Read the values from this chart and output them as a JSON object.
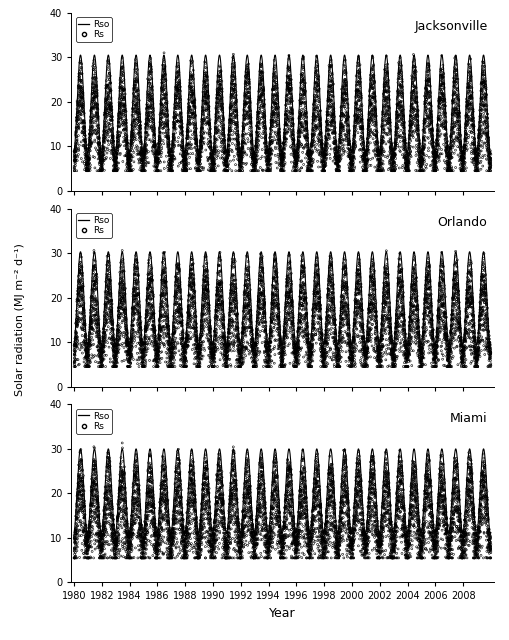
{
  "stations": [
    "Jacksonville",
    "Orlando",
    "Miami"
  ],
  "start_year": 1980,
  "end_year": 2009,
  "ylim": [
    0,
    40
  ],
  "yticks": [
    0,
    10,
    20,
    30,
    40
  ],
  "xticks": [
    1980,
    1982,
    1984,
    1986,
    1988,
    1990,
    1992,
    1994,
    1996,
    1998,
    2000,
    2002,
    2004,
    2006,
    2008
  ],
  "ylabel": "Solar radiation (MJ m⁻² d⁻¹)",
  "xlabel": "Year",
  "rso_params": {
    "Jacksonville": {
      "mean": 19.5,
      "amplitude": 11.0,
      "min_rs": 6.0
    },
    "Orlando": {
      "mean": 19.8,
      "amplitude": 10.5,
      "min_rs": 6.0
    },
    "Miami": {
      "mean": 20.5,
      "amplitude": 9.5,
      "min_rs": 7.0
    }
  },
  "line_color": "#000000",
  "scatter_color": "#000000",
  "scatter_facecolor": "none",
  "scatter_size": 2,
  "scatter_linewidth": 0.4,
  "line_width": 0.8,
  "font_size": 7,
  "station_font_size": 9,
  "fig_width": 5.09,
  "fig_height": 6.4,
  "dpi": 100,
  "bg_color": "#ffffff",
  "seed": 42
}
